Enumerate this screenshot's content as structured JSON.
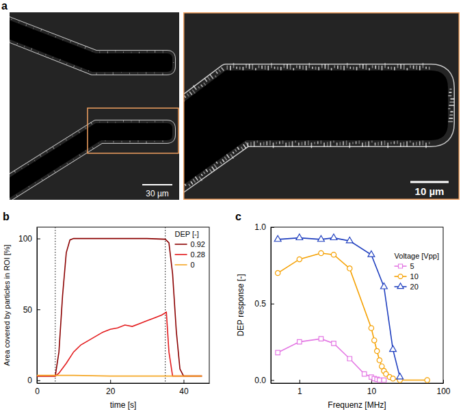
{
  "image": {
    "panel_label": "a",
    "scale_bars": [
      "30 µm",
      "10 µm"
    ]
  },
  "chart_data": [
    {
      "type": "line",
      "panel_label": "b",
      "x_label": "time [s]",
      "y_label": "Area covered by particles in ROI [%]",
      "xlim": [
        0,
        47
      ],
      "xticks": [
        0,
        20,
        40
      ],
      "ylim": [
        -2,
        108
      ],
      "yticks": [
        0,
        50,
        100
      ],
      "vlines": [
        5,
        35
      ],
      "legend": "upper right",
      "legend_title": "DEP [-]",
      "series": [
        {
          "name": "0.92",
          "color": "#8b0000",
          "x": [
            0,
            5,
            6,
            7,
            8,
            9,
            10,
            20,
            30,
            35,
            36,
            37,
            38,
            39,
            40,
            42,
            45
          ],
          "values": [
            3,
            3,
            20,
            60,
            90,
            99,
            100,
            100,
            100,
            99.5,
            97,
            75,
            35,
            8,
            3,
            3,
            3
          ]
        },
        {
          "name": "0.28",
          "color": "#e31a1c",
          "x": [
            0,
            5,
            6,
            8,
            10,
            12,
            14,
            16,
            18,
            20,
            22,
            24,
            26,
            28,
            30,
            32,
            34,
            35.3,
            36,
            37,
            40,
            45
          ],
          "values": [
            3,
            3,
            5,
            12,
            20,
            25,
            28,
            31,
            34,
            36,
            37,
            39,
            38,
            40,
            42,
            44,
            46,
            48,
            20,
            3,
            3,
            3
          ]
        },
        {
          "name": "0",
          "color": "#f5a623",
          "x": [
            0,
            10,
            20,
            30,
            40,
            45
          ],
          "values": [
            3.5,
            3.5,
            3,
            3,
            3,
            3
          ]
        }
      ]
    },
    {
      "type": "line",
      "panel_label": "c",
      "log": "x",
      "x_label": "Frequenz [MHz]",
      "y_label": "DEP response [-]",
      "xlim": [
        0.4,
        100
      ],
      "xticks": [
        1,
        10,
        100
      ],
      "ylim": [
        -0.02,
        1.0
      ],
      "yticks": [
        {
          "value": 0,
          "label": "0.0"
        },
        {
          "value": 0.5,
          "label": "0.5"
        },
        {
          "value": 1,
          "label": "1.0"
        }
      ],
      "legend": "upper right",
      "legend_title": "Voltage [Vpp]",
      "series": [
        {
          "name": "5",
          "color": "#e377e3",
          "marker": "square",
          "x": [
            0.5,
            1,
            2,
            3,
            5,
            8,
            10,
            11,
            12,
            13,
            15
          ],
          "values": [
            0.18,
            0.25,
            0.27,
            0.24,
            0.14,
            0.04,
            0.02,
            0.01,
            0.005,
            0.0,
            0.0
          ]
        },
        {
          "name": "10",
          "color": "#f5a000",
          "marker": "circle",
          "x": [
            0.5,
            1,
            2,
            3,
            5,
            10,
            11,
            12,
            13,
            14,
            15,
            16,
            18,
            20,
            25,
            60
          ],
          "values": [
            0.7,
            0.79,
            0.83,
            0.82,
            0.73,
            0.34,
            0.26,
            0.19,
            0.13,
            0.09,
            0.06,
            0.04,
            0.02,
            0.01,
            0.0,
            0.0
          ]
        },
        {
          "name": "20",
          "color": "#1f3fbf",
          "marker": "triangle",
          "x": [
            0.5,
            1,
            2,
            3,
            5,
            10,
            15,
            20,
            25
          ],
          "values": [
            0.92,
            0.93,
            0.92,
            0.93,
            0.91,
            0.82,
            0.61,
            0.2,
            0.02
          ]
        }
      ]
    }
  ]
}
